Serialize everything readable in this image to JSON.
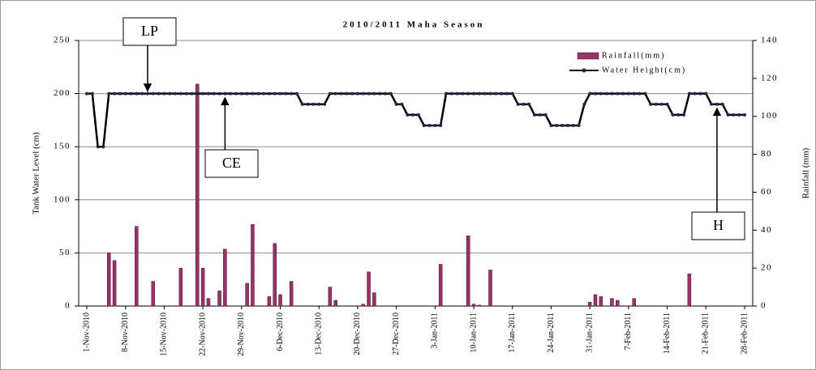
{
  "chart_data": {
    "type": "bar-line",
    "title": "2010/2011 Maha Season",
    "y_label": "Tank Water Level (cm)",
    "y2_label": "Rainfall (mm)",
    "categories": [
      "1-Nov-2010",
      null,
      null,
      null,
      null,
      null,
      null,
      "8-Nov-2010",
      null,
      null,
      null,
      null,
      null,
      null,
      "15-Nov-2010",
      null,
      null,
      null,
      null,
      null,
      null,
      "22-Nov-2010",
      null,
      null,
      null,
      null,
      null,
      null,
      "29-Nov-2010",
      null,
      null,
      null,
      null,
      null,
      null,
      "6-Dec-2010",
      null,
      null,
      null,
      null,
      null,
      null,
      "13-Dec-2010",
      null,
      null,
      null,
      null,
      null,
      null,
      "20-Dec-2010",
      null,
      null,
      null,
      null,
      null,
      null,
      "27-Dec-2010",
      null,
      null,
      null,
      null,
      null,
      null,
      "3-Jan-2011",
      null,
      null,
      null,
      null,
      null,
      null,
      "10-Jan-2011",
      null,
      null,
      null,
      null,
      null,
      null,
      "17-Jan-2011",
      null,
      null,
      null,
      null,
      null,
      null,
      "24-Jan-2011",
      null,
      null,
      null,
      null,
      null,
      null,
      "31-Jan-2011",
      null,
      null,
      null,
      null,
      null,
      null,
      "7-Feb-2011",
      null,
      null,
      null,
      null,
      null,
      null,
      "14-Feb-2011",
      null,
      null,
      null,
      null,
      null,
      null,
      "21-Feb-2011",
      null,
      null,
      null,
      null,
      null,
      null,
      "28-Feb-2011"
    ],
    "series": [
      {
        "name": "Rainfall(mm)",
        "type": "bar",
        "axis": "y2",
        "color": "#993366",
        "values": [
          0,
          0,
          0,
          0,
          28,
          24,
          0,
          0,
          0,
          42,
          0,
          0,
          13,
          0,
          0,
          0,
          0,
          20,
          0,
          0,
          117,
          20,
          4,
          0,
          8,
          30,
          0,
          0,
          0,
          12,
          43,
          0,
          0,
          5,
          33,
          6,
          0,
          13,
          0,
          0,
          0,
          0,
          0,
          0,
          10,
          3,
          0,
          0,
          0,
          0,
          1,
          18,
          7,
          0,
          0,
          0,
          0,
          0,
          0,
          0,
          0,
          0,
          0,
          0,
          22,
          0,
          0,
          0,
          0,
          37,
          1,
          0.5,
          0,
          19,
          0,
          0,
          0,
          0,
          0,
          0,
          0,
          0,
          0,
          0,
          0,
          0,
          0,
          0,
          0,
          0,
          0,
          2,
          6,
          5,
          0,
          4,
          3,
          0,
          0,
          4,
          0,
          0,
          0,
          0,
          0,
          0,
          0,
          0,
          0,
          17,
          0,
          0,
          0,
          0,
          0,
          0,
          0,
          0,
          0,
          0
        ]
      },
      {
        "name": "Water Height(cm)",
        "type": "line",
        "axis": "y",
        "color": "#000000",
        "marker_color": "#1f2a4a",
        "values": [
          200,
          200,
          150,
          150,
          200,
          200,
          200,
          200,
          200,
          200,
          200,
          200,
          200,
          200,
          200,
          200,
          200,
          200,
          200,
          200,
          200,
          200,
          200,
          200,
          200,
          200,
          200,
          200,
          200,
          200,
          200,
          200,
          200,
          200,
          200,
          200,
          200,
          200,
          200,
          190,
          190,
          190,
          190,
          190,
          200,
          200,
          200,
          200,
          200,
          200,
          200,
          200,
          200,
          200,
          200,
          200,
          190,
          190,
          180,
          180,
          180,
          170,
          170,
          170,
          170,
          200,
          200,
          200,
          200,
          200,
          200,
          200,
          200,
          200,
          200,
          200,
          200,
          200,
          190,
          190,
          190,
          180,
          180,
          180,
          170,
          170,
          170,
          170,
          170,
          170,
          190,
          200,
          200,
          200,
          200,
          200,
          200,
          200,
          200,
          200,
          200,
          200,
          190,
          190,
          190,
          190,
          180,
          180,
          180,
          200,
          200,
          200,
          200,
          190,
          190,
          190,
          180,
          180,
          180,
          180
        ]
      }
    ],
    "ylim": [
      0,
      250
    ],
    "yticks": [
      0,
      50,
      100,
      150,
      200,
      250
    ],
    "y2lim": [
      0,
      140
    ],
    "y2ticks": [
      0,
      20,
      40,
      60,
      80,
      100,
      120,
      140
    ],
    "grid": true,
    "legend": "upper right",
    "annotations": [
      {
        "text": "LP",
        "index": 11
      },
      {
        "text": "CE",
        "index": 25
      },
      {
        "text": "H",
        "index": 114
      }
    ]
  }
}
